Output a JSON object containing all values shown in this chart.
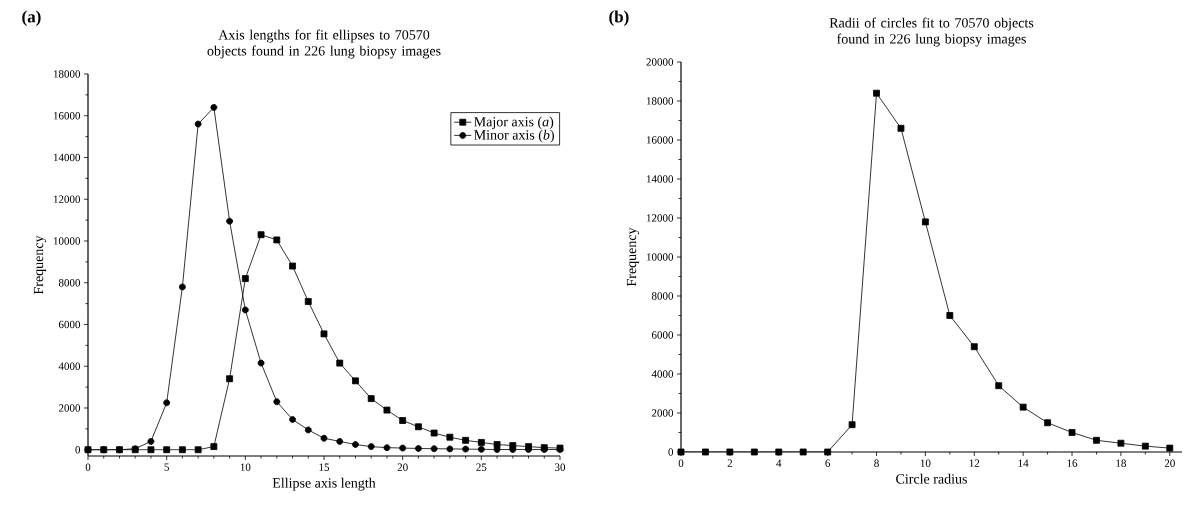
{
  "chart_data": [
    {
      "type": "line",
      "title": "Axis lengths for fit ellipses to 70570 objects found in 226 lung biopsy images",
      "xlabel": "Ellipse axis length",
      "ylabel": "Frequency",
      "annotations": [
        "(a)"
      ],
      "x": [
        0,
        1,
        2,
        3,
        4,
        5,
        6,
        7,
        8,
        9,
        10,
        11,
        12,
        13,
        14,
        15,
        16,
        17,
        18,
        19,
        20,
        21,
        22,
        23,
        24,
        25,
        26,
        27,
        28,
        29,
        30
      ],
      "series": [
        {
          "name": "Major axis (*a*)",
          "color": "#000000",
          "marker": "square",
          "values": [
            0,
            0,
            0,
            0,
            0,
            0,
            0,
            0,
            150,
            3400,
            8200,
            10300,
            10050,
            8800,
            7100,
            5550,
            4150,
            3300,
            2450,
            1900,
            1400,
            1100,
            800,
            600,
            450,
            350,
            250,
            200,
            150,
            100,
            80
          ]
        },
        {
          "name": "Minor axis (*b*)",
          "color": "#000000",
          "marker": "circle",
          "values": [
            0,
            0,
            0,
            50,
            400,
            2250,
            7800,
            15600,
            16400,
            10950,
            6700,
            4150,
            2300,
            1450,
            950,
            550,
            400,
            250,
            150,
            100,
            80,
            60,
            50,
            40,
            30,
            20,
            10,
            10,
            10,
            10,
            10
          ]
        }
      ],
      "xlim": [
        0,
        30
      ],
      "ylim": [
        -300,
        18000
      ],
      "xticks": [
        0,
        5,
        10,
        15,
        20,
        25,
        30
      ],
      "yticks": [
        0,
        2000,
        4000,
        6000,
        8000,
        10000,
        12000,
        14000,
        16000,
        18000
      ],
      "legend": "top right",
      "line_style": "solid"
    },
    {
      "type": "line",
      "title": "Radii of circles fit to 70570 objects found in 226 lung biopsy images",
      "xlabel": "Circle radius",
      "ylabel": "Frequency",
      "annotations": [
        "(b)"
      ],
      "x": [
        0,
        1,
        2,
        3,
        4,
        5,
        6,
        7,
        8,
        9,
        10,
        11,
        12,
        13,
        14,
        15,
        16,
        17,
        18,
        19,
        20
      ],
      "series": [
        {
          "color": "#000000",
          "marker": "square",
          "values": [
            0,
            0,
            0,
            0,
            0,
            0,
            0,
            1400,
            18400,
            16600,
            11800,
            7000,
            5400,
            3400,
            2300,
            1500,
            1000,
            600,
            450,
            300,
            200
          ]
        }
      ],
      "xlim": [
        0,
        20.5
      ],
      "ylim": [
        0,
        20000
      ],
      "xticks": [
        0,
        2,
        4,
        6,
        8,
        10,
        12,
        14,
        16,
        18,
        20
      ],
      "yticks": [
        0,
        2000,
        4000,
        6000,
        8000,
        10000,
        12000,
        14000,
        16000,
        18000,
        20000
      ],
      "line_style": "solid"
    }
  ]
}
